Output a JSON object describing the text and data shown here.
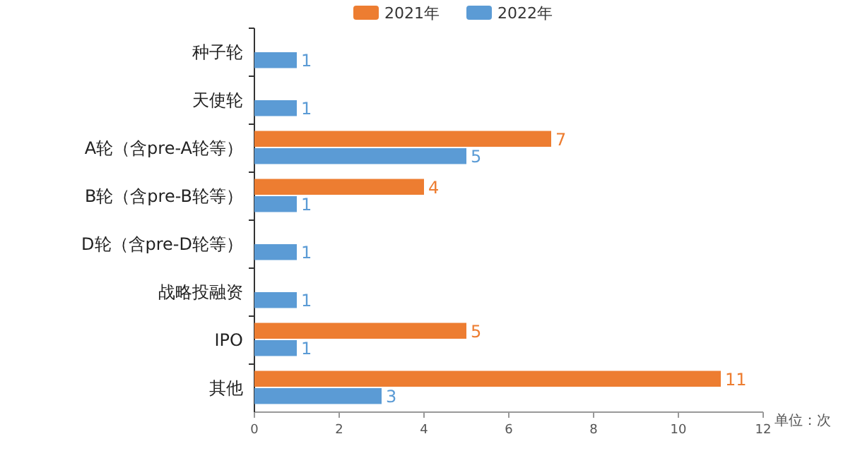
{
  "chart_data": {
    "type": "bar",
    "orientation": "horizontal",
    "categories": [
      "种子轮",
      "天使轮",
      "A轮（含pre-A轮等）",
      "B轮（含pre-B轮等）",
      "D轮（含pre-D轮等）",
      "战略投融资",
      "IPO",
      "其他"
    ],
    "series": [
      {
        "name": "2021年",
        "color": "#ed7d31",
        "values": [
          null,
          null,
          7,
          4,
          null,
          null,
          5,
          11
        ]
      },
      {
        "name": "2022年",
        "color": "#5b9bd5",
        "values": [
          1,
          1,
          5,
          1,
          1,
          1,
          1,
          3
        ]
      }
    ],
    "xlim": [
      0,
      12
    ],
    "xticks": [
      0,
      2,
      4,
      6,
      8,
      10,
      12
    ],
    "data_labels": true,
    "legend": "top",
    "grid": false,
    "annotations": [
      "单位：次"
    ]
  }
}
